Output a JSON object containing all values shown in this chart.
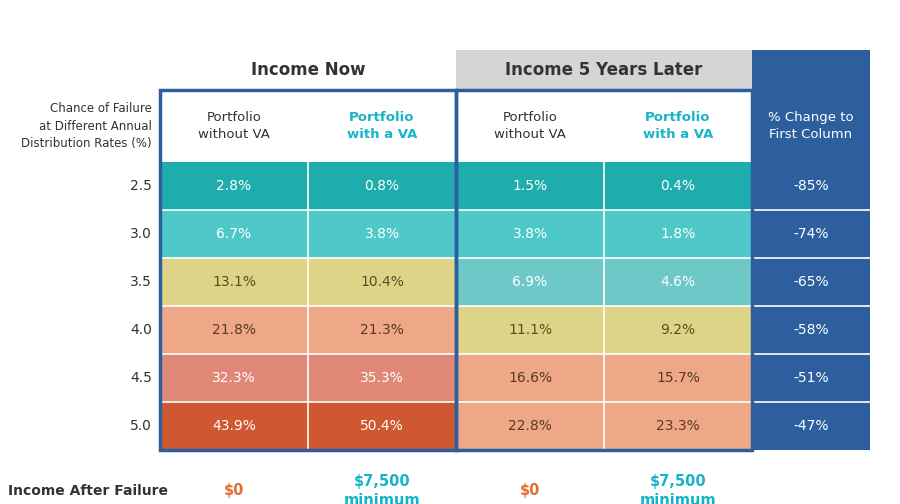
{
  "title_left": "Income Now",
  "title_right": "Income 5 Years Later",
  "col_headers": [
    "Portfolio\nwithout VA",
    "Portfolio\nwith a VA",
    "Portfolio\nwithout VA",
    "Portfolio\nwith a VA",
    "% Change to\nFirst Column"
  ],
  "col_header_colors": [
    "#333333",
    "#17b3c8",
    "#333333",
    "#17b3c8",
    "#ffffff"
  ],
  "col_header_bold": [
    false,
    true,
    false,
    true,
    false
  ],
  "row_labels": [
    "2.5",
    "3.0",
    "3.5",
    "4.0",
    "4.5",
    "5.0"
  ],
  "row_label_header": "Chance of Failure\nat Different Annual\nDistribution Rates (%)",
  "data": [
    [
      "2.8%",
      "0.8%",
      "1.5%",
      "0.4%",
      "-85%"
    ],
    [
      "6.7%",
      "3.8%",
      "3.8%",
      "1.8%",
      "-74%"
    ],
    [
      "13.1%",
      "10.4%",
      "6.9%",
      "4.6%",
      "-65%"
    ],
    [
      "21.8%",
      "21.3%",
      "11.1%",
      "9.2%",
      "-58%"
    ],
    [
      "32.3%",
      "35.3%",
      "16.6%",
      "15.7%",
      "-51%"
    ],
    [
      "43.9%",
      "50.4%",
      "22.8%",
      "23.3%",
      "-47%"
    ]
  ],
  "cell_colors": [
    [
      "#1eacac",
      "#1eacac",
      "#1eacac",
      "#1eacac",
      "#2d5f9e"
    ],
    [
      "#4ec8c8",
      "#4ec8c8",
      "#4ec8c8",
      "#4ec8c8",
      "#2d5f9e"
    ],
    [
      "#ddd488",
      "#ddd488",
      "#6ec8c8",
      "#6ec8c8",
      "#2d5f9e"
    ],
    [
      "#eea888",
      "#eea888",
      "#ddd488",
      "#ddd488",
      "#2d5f9e"
    ],
    [
      "#e08878",
      "#e08878",
      "#eea888",
      "#eea888",
      "#2d5f9e"
    ],
    [
      "#d05830",
      "#d05830",
      "#eea888",
      "#eea888",
      "#2d5f9e"
    ]
  ],
  "cell_text_colors": [
    [
      "#ffffff",
      "#ffffff",
      "#ffffff",
      "#ffffff",
      "#ffffff"
    ],
    [
      "#ffffff",
      "#ffffff",
      "#ffffff",
      "#ffffff",
      "#ffffff"
    ],
    [
      "#5a4e20",
      "#5a4e20",
      "#ffffff",
      "#ffffff",
      "#ffffff"
    ],
    [
      "#5a3a20",
      "#5a3a20",
      "#5a4e20",
      "#5a4e20",
      "#ffffff"
    ],
    [
      "#ffffff",
      "#ffffff",
      "#5a3a20",
      "#5a3a20",
      "#ffffff"
    ],
    [
      "#ffffff",
      "#ffffff",
      "#5a3a20",
      "#5a3a20",
      "#ffffff"
    ]
  ],
  "dark_blue": "#2d5f9e",
  "teal_color": "#17b3c8",
  "orange_color": "#e07030",
  "footer_labels": [
    "$0",
    "$7,500\nminimum",
    "$0",
    "$7,500\nminimum"
  ],
  "footer_colors": [
    "#e07030",
    "#17b3c8",
    "#e07030",
    "#17b3c8"
  ],
  "income_after_failure": "Income After Failure"
}
